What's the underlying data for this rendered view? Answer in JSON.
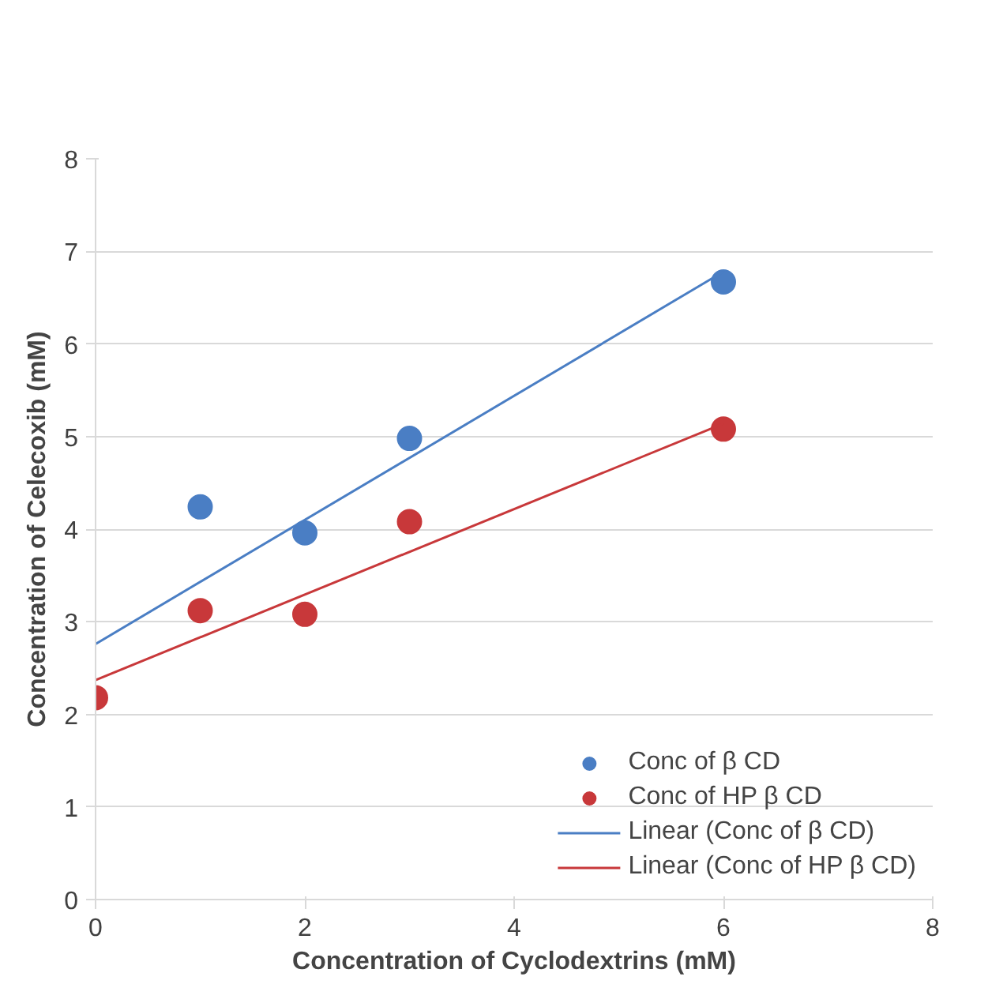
{
  "chart_data": {
    "type": "scatter",
    "xlabel": "Concentration of Cyclodextrins (mM)",
    "ylabel": "Concentration of Celecoxib (mM)",
    "xlim": [
      0,
      8
    ],
    "ylim": [
      0,
      8
    ],
    "xticks": [
      0,
      2,
      4,
      6,
      8
    ],
    "yticks": [
      0,
      1,
      2,
      3,
      4,
      5,
      6,
      7,
      8
    ],
    "grid": "y",
    "legend": "bottom right",
    "line_style": "solid",
    "series": [
      {
        "name": "Conc of β CD",
        "color": "#4a7ec4",
        "marker": "circle",
        "x": [
          1,
          2,
          3,
          6
        ],
        "values": [
          4.24,
          3.96,
          4.98,
          6.67
        ]
      },
      {
        "name": "Conc of HP β CD",
        "color": "#c8383a",
        "marker": "circle",
        "x": [
          0,
          1,
          2,
          3,
          6
        ],
        "values": [
          2.18,
          3.12,
          3.08,
          4.08,
          5.08
        ]
      },
      {
        "name": "Linear (Conc of β CD)",
        "color": "#4a7ec4",
        "type": "line",
        "marker": "none",
        "x": [
          0,
          6
        ],
        "values": [
          2.76,
          6.78
        ]
      },
      {
        "name": "Linear (Conc of HP β CD)",
        "color": "#c8383a",
        "type": "line",
        "marker": "none",
        "x": [
          0,
          6
        ],
        "values": [
          2.37,
          5.14
        ]
      }
    ]
  }
}
